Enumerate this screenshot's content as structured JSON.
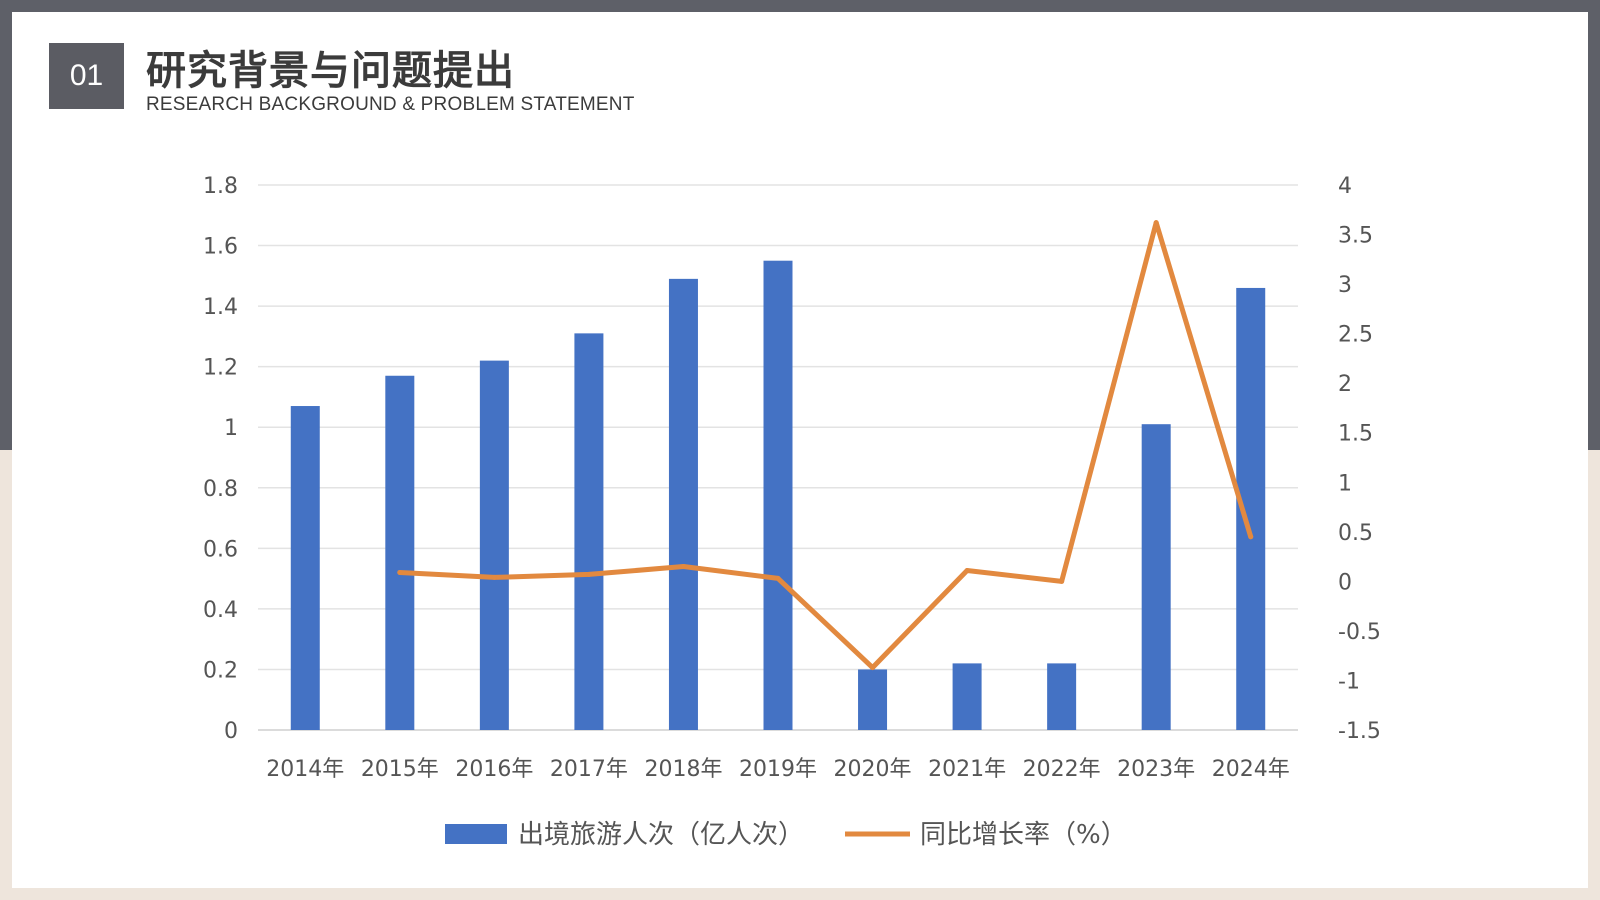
{
  "slide": {
    "number": "01",
    "title": "研究背景与问题提出",
    "subtitle": "RESEARCH BACKGROUND & PROBLEM STATEMENT"
  },
  "colors": {
    "bar": "#4472c4",
    "line": "#e2893f",
    "header_box": "#5b5c63"
  },
  "chart_data": {
    "type": "bar",
    "categories": [
      "2014年",
      "2015年",
      "2016年",
      "2017年",
      "2018年",
      "2019年",
      "2020年",
      "2021年",
      "2022年",
      "2023年",
      "2024年"
    ],
    "series": [
      {
        "name": "出境旅游人次（亿人次）",
        "type": "bar",
        "axis": "left",
        "values": [
          1.07,
          1.17,
          1.22,
          1.31,
          1.49,
          1.55,
          0.2,
          0.22,
          0.22,
          1.01,
          1.46
        ]
      },
      {
        "name": "同比增长率（%）",
        "type": "line",
        "axis": "right",
        "values": [
          null,
          0.09,
          0.04,
          0.07,
          0.15,
          0.03,
          -0.87,
          0.11,
          0.0,
          3.62,
          0.45
        ]
      }
    ],
    "y_left": {
      "min": 0,
      "max": 1.8,
      "ticks": [
        "0",
        "0.2",
        "0.4",
        "0.6",
        "0.8",
        "1",
        "1.2",
        "1.4",
        "1.6",
        "1.8"
      ]
    },
    "y_right": {
      "min": -1.5,
      "max": 4,
      "ticks": [
        "-1.5",
        "-1",
        "-0.5",
        "0",
        "0.5",
        "1",
        "1.5",
        "2",
        "2.5",
        "3",
        "3.5",
        "4"
      ]
    },
    "grid": true,
    "legend_position": "bottom"
  }
}
